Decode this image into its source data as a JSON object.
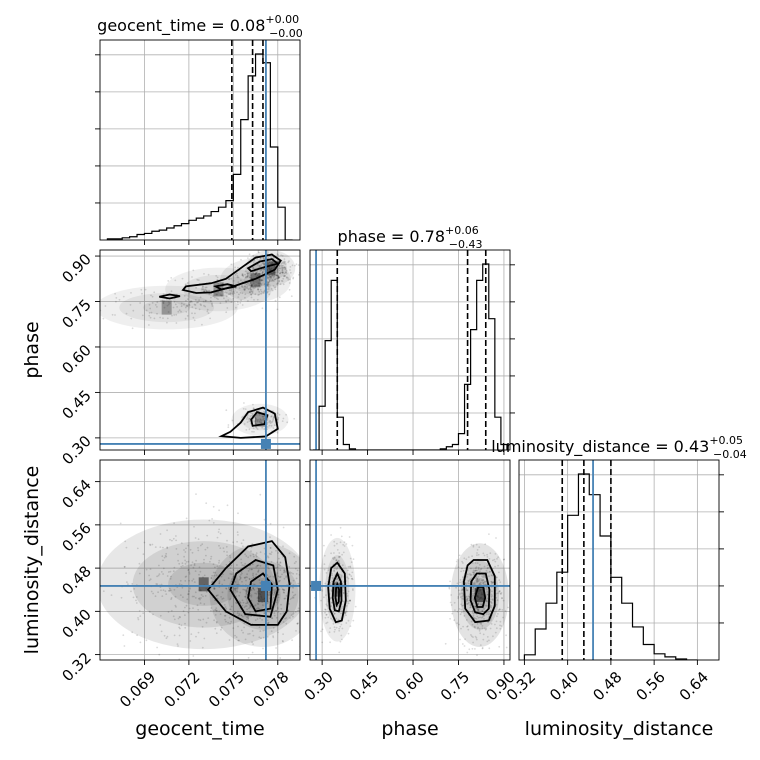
{
  "chart_data": {
    "type": "corner",
    "parameters": [
      {
        "name": "geocent_time",
        "title": "geocent_time = 0.08",
        "sup": "+0.00",
        "sub": "−0.00",
        "truth": 0.0772,
        "quantiles": [
          0.0749,
          0.0763,
          0.077
        ],
        "range": [
          0.066,
          0.0795
        ],
        "ticks": [
          0.069,
          0.072,
          0.075,
          0.078
        ],
        "tick_labels": [
          "0.069",
          "0.072",
          "0.075",
          "0.078"
        ],
        "hist_edges": [
          0.0665,
          0.067,
          0.0675,
          0.068,
          0.0685,
          0.069,
          0.0695,
          0.07,
          0.0705,
          0.071,
          0.0715,
          0.072,
          0.0725,
          0.073,
          0.0735,
          0.074,
          0.0745,
          0.075,
          0.0755,
          0.076,
          0.0765,
          0.077,
          0.0775,
          0.078,
          0.0785,
          0.079
        ],
        "hist_values": [
          1,
          1,
          2,
          3,
          5,
          6,
          8,
          9,
          11,
          13,
          15,
          18,
          20,
          22,
          26,
          30,
          36,
          60,
          110,
          150,
          170,
          162,
          85,
          30,
          0
        ]
      },
      {
        "name": "phase",
        "title": "phase = 0.78",
        "sup": "+0.06",
        "sub": "−0.43",
        "truth": 0.28,
        "quantiles": [
          0.35,
          0.78,
          0.84
        ],
        "range": [
          0.26,
          0.92
        ],
        "ticks": [
          0.3,
          0.45,
          0.6,
          0.75,
          0.9
        ],
        "tick_labels": [
          "0.30",
          "0.45",
          "0.60",
          "0.75",
          "0.90"
        ],
        "hist_edges": [
          0.27,
          0.29,
          0.31,
          0.33,
          0.35,
          0.37,
          0.39,
          0.41,
          0.43,
          0.45,
          0.47,
          0.49,
          0.51,
          0.53,
          0.55,
          0.57,
          0.59,
          0.61,
          0.63,
          0.65,
          0.67,
          0.69,
          0.71,
          0.73,
          0.75,
          0.77,
          0.79,
          0.81,
          0.83,
          0.85,
          0.87,
          0.89,
          0.91
        ],
        "hist_values": [
          0,
          40,
          100,
          155,
          30,
          5,
          1,
          0,
          0,
          0,
          0,
          0,
          0,
          0,
          0,
          0,
          0,
          0,
          0,
          0,
          0,
          1,
          3,
          5,
          15,
          60,
          110,
          155,
          170,
          120,
          30,
          5
        ]
      },
      {
        "name": "luminosity_distance",
        "title": "luminosity_distance = 0.43",
        "sup": "+0.05",
        "sub": "−0.04",
        "truth": 0.447,
        "quantiles": [
          0.39,
          0.43,
          0.48
        ],
        "range": [
          0.31,
          0.68
        ],
        "ticks": [
          0.32,
          0.4,
          0.48,
          0.56,
          0.64
        ],
        "tick_labels": [
          "0.32",
          "0.40",
          "0.48",
          "0.56",
          "0.64"
        ],
        "hist_edges": [
          0.32,
          0.34,
          0.36,
          0.38,
          0.4,
          0.42,
          0.44,
          0.46,
          0.48,
          0.5,
          0.52,
          0.54,
          0.56,
          0.58,
          0.6,
          0.62,
          0.64
        ],
        "hist_values": [
          5,
          30,
          55,
          85,
          140,
          180,
          160,
          120,
          80,
          55,
          32,
          15,
          6,
          3,
          1,
          0
        ]
      }
    ],
    "blobs": {
      "1_0": [
        {
          "x": 0.0775,
          "y": 0.86,
          "sx": 0.0007,
          "sy": 0.025,
          "w": 0.35
        },
        {
          "x": 0.0765,
          "y": 0.82,
          "sx": 0.001,
          "sy": 0.03,
          "w": 0.22
        },
        {
          "x": 0.074,
          "y": 0.79,
          "sx": 0.0015,
          "sy": 0.03,
          "w": 0.15
        },
        {
          "x": 0.0705,
          "y": 0.73,
          "sx": 0.002,
          "sy": 0.03,
          "w": 0.12
        },
        {
          "x": 0.0768,
          "y": 0.36,
          "sx": 0.0008,
          "sy": 0.022,
          "w": 0.16
        }
      ],
      "2_0": [
        {
          "x": 0.077,
          "y": 0.43,
          "sx": 0.0015,
          "sy": 0.04,
          "w": 0.5
        },
        {
          "x": 0.073,
          "y": 0.45,
          "sx": 0.003,
          "sy": 0.05,
          "w": 0.5
        }
      ],
      "2_1": [
        {
          "x": 0.35,
          "y": 0.44,
          "sx": 0.025,
          "sy": 0.04,
          "w": 0.35
        },
        {
          "x": 0.82,
          "y": 0.43,
          "sx": 0.04,
          "sy": 0.04,
          "w": 0.65
        }
      ]
    },
    "contours": {
      "1_0": [
        [
          [
            0.0735,
            0.78
          ],
          [
            0.075,
            0.8
          ],
          [
            0.0765,
            0.825
          ],
          [
            0.0778,
            0.855
          ],
          [
            0.0782,
            0.885
          ],
          [
            0.0776,
            0.905
          ],
          [
            0.0765,
            0.895
          ],
          [
            0.0755,
            0.86
          ],
          [
            0.0745,
            0.825
          ],
          [
            0.0735,
            0.81
          ],
          [
            0.0718,
            0.8
          ],
          [
            0.0716,
            0.788
          ],
          [
            0.0725,
            0.778
          ]
        ],
        [
          [
            0.0762,
            0.85
          ],
          [
            0.0772,
            0.865
          ],
          [
            0.078,
            0.875
          ],
          [
            0.0776,
            0.89
          ],
          [
            0.0768,
            0.882
          ],
          [
            0.076,
            0.86
          ]
        ],
        [
          [
            0.0742,
            0.79
          ],
          [
            0.0752,
            0.8
          ],
          [
            0.0746,
            0.807
          ],
          [
            0.0738,
            0.8
          ]
        ],
        [
          [
            0.0707,
            0.76
          ],
          [
            0.0714,
            0.768
          ],
          [
            0.0707,
            0.773
          ],
          [
            0.07,
            0.766
          ]
        ],
        [
          [
            0.0755,
            0.3
          ],
          [
            0.0772,
            0.305
          ],
          [
            0.078,
            0.33
          ],
          [
            0.0778,
            0.38
          ],
          [
            0.077,
            0.4
          ],
          [
            0.076,
            0.385
          ],
          [
            0.0755,
            0.35
          ],
          [
            0.0748,
            0.32
          ],
          [
            0.0742,
            0.306
          ]
        ],
        [
          [
            0.0763,
            0.34
          ],
          [
            0.0771,
            0.345
          ],
          [
            0.0773,
            0.375
          ],
          [
            0.0766,
            0.385
          ],
          [
            0.0762,
            0.36
          ]
        ]
      ],
      "2_0": [
        [
          [
            0.0733,
            0.44
          ],
          [
            0.0745,
            0.4
          ],
          [
            0.0762,
            0.375
          ],
          [
            0.078,
            0.375
          ],
          [
            0.0786,
            0.4
          ],
          [
            0.0788,
            0.45
          ],
          [
            0.0785,
            0.5
          ],
          [
            0.0776,
            0.53
          ],
          [
            0.076,
            0.52
          ],
          [
            0.0745,
            0.48
          ]
        ],
        [
          [
            0.0748,
            0.44
          ],
          [
            0.0758,
            0.395
          ],
          [
            0.0775,
            0.39
          ],
          [
            0.078,
            0.44
          ],
          [
            0.0777,
            0.485
          ],
          [
            0.0765,
            0.495
          ],
          [
            0.0752,
            0.47
          ]
        ],
        [
          [
            0.076,
            0.425
          ],
          [
            0.0765,
            0.4
          ],
          [
            0.0775,
            0.405
          ],
          [
            0.0776,
            0.45
          ],
          [
            0.077,
            0.47
          ],
          [
            0.0762,
            0.455
          ]
        ]
      ],
      "2_1": [
        [
          [
            0.35,
            0.49
          ],
          [
            0.375,
            0.47
          ],
          [
            0.378,
            0.42
          ],
          [
            0.365,
            0.383
          ],
          [
            0.345,
            0.38
          ],
          [
            0.325,
            0.405
          ],
          [
            0.32,
            0.445
          ],
          [
            0.33,
            0.48
          ]
        ],
        [
          [
            0.35,
            0.47
          ],
          [
            0.362,
            0.455
          ],
          [
            0.364,
            0.42
          ],
          [
            0.355,
            0.4
          ],
          [
            0.342,
            0.402
          ],
          [
            0.335,
            0.425
          ],
          [
            0.338,
            0.455
          ]
        ],
        [
          [
            0.35,
            0.45
          ],
          [
            0.356,
            0.44
          ],
          [
            0.355,
            0.418
          ],
          [
            0.348,
            0.412
          ],
          [
            0.344,
            0.425
          ],
          [
            0.346,
            0.443
          ]
        ],
        [
          [
            0.8,
            0.495
          ],
          [
            0.845,
            0.495
          ],
          [
            0.87,
            0.465
          ],
          [
            0.87,
            0.41
          ],
          [
            0.85,
            0.383
          ],
          [
            0.805,
            0.38
          ],
          [
            0.772,
            0.405
          ],
          [
            0.768,
            0.455
          ],
          [
            0.78,
            0.485
          ]
        ],
        [
          [
            0.81,
            0.47
          ],
          [
            0.84,
            0.47
          ],
          [
            0.852,
            0.44
          ],
          [
            0.85,
            0.405
          ],
          [
            0.832,
            0.395
          ],
          [
            0.805,
            0.398
          ],
          [
            0.79,
            0.42
          ],
          [
            0.792,
            0.455
          ]
        ],
        [
          [
            0.815,
            0.445
          ],
          [
            0.832,
            0.445
          ],
          [
            0.838,
            0.425
          ],
          [
            0.83,
            0.408
          ],
          [
            0.812,
            0.408
          ],
          [
            0.804,
            0.425
          ]
        ]
      ]
    },
    "truth_point_color": "#4682b4",
    "line_color": "#000000",
    "grid": true
  }
}
